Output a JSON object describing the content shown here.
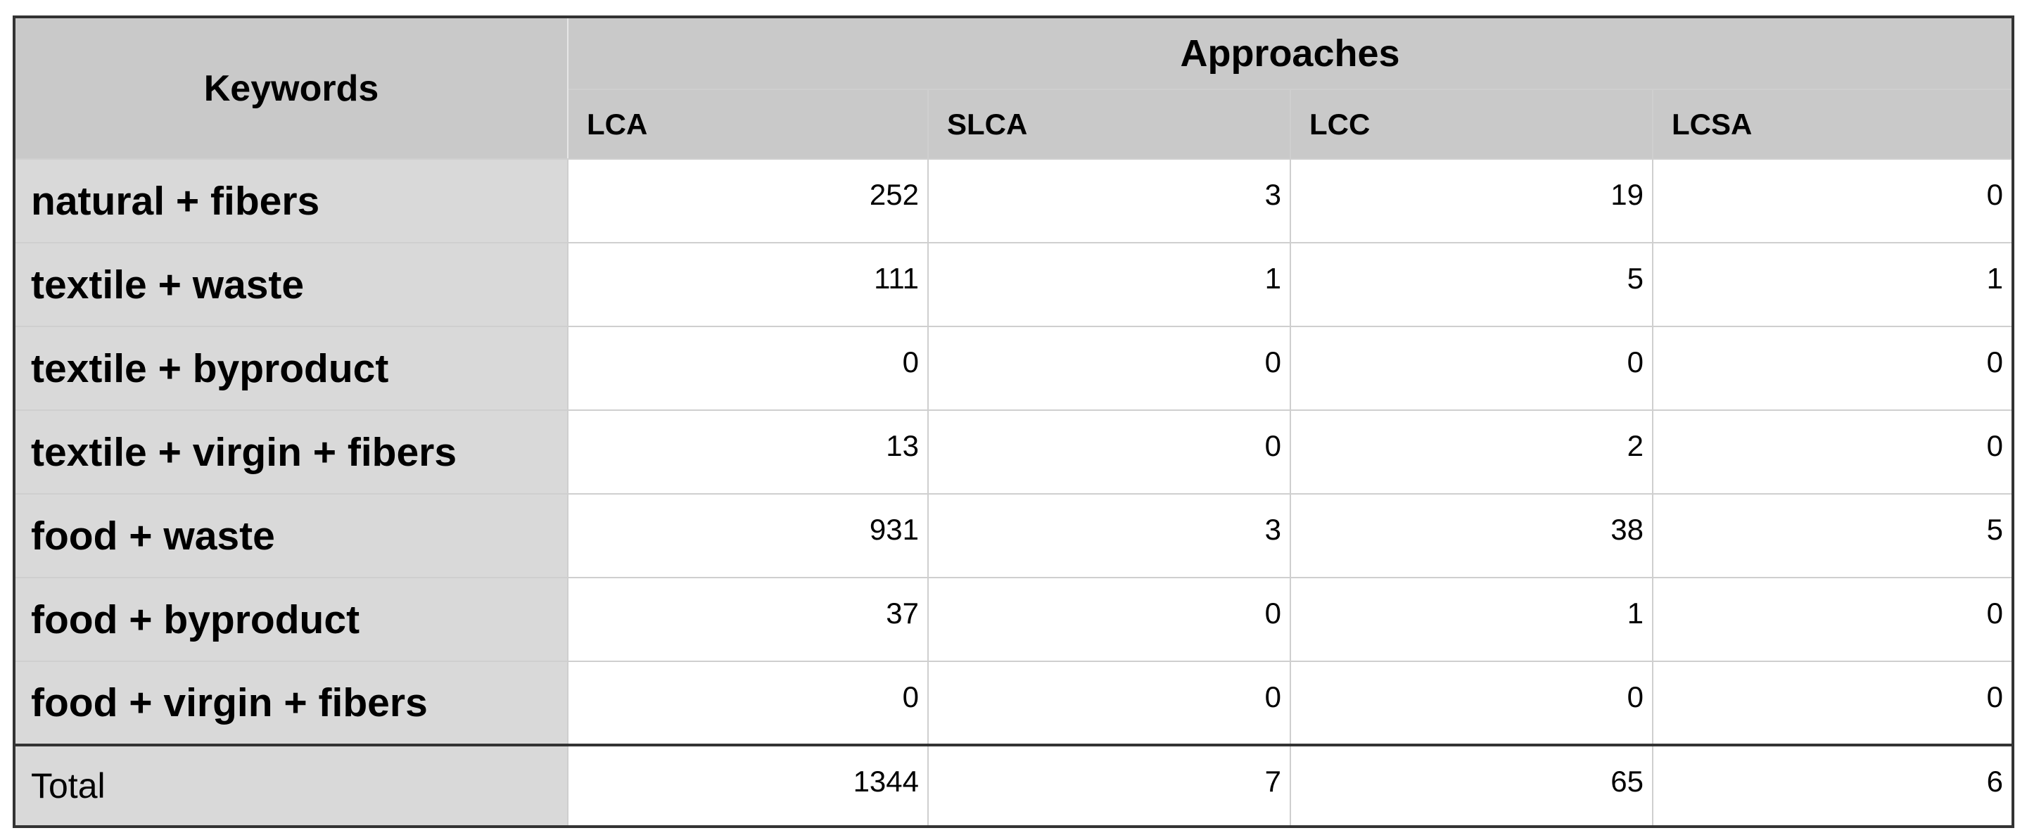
{
  "header": {
    "keywords": "Keywords",
    "approaches": "Approaches",
    "columns": [
      "LCA",
      "SLCA",
      "LCC",
      "LCSA"
    ]
  },
  "table": {
    "rows": [
      {
        "keyword": "natural + fibers",
        "values": [
          252,
          3,
          19,
          0
        ]
      },
      {
        "keyword": "textile + waste",
        "values": [
          111,
          1,
          5,
          1
        ]
      },
      {
        "keyword": "textile + byproduct",
        "values": [
          0,
          0,
          0,
          0
        ]
      },
      {
        "keyword": "textile + virgin + fibers",
        "values": [
          13,
          0,
          2,
          0
        ]
      },
      {
        "keyword": "food + waste",
        "values": [
          931,
          3,
          38,
          5
        ]
      },
      {
        "keyword": "food + byproduct",
        "values": [
          37,
          0,
          1,
          0
        ]
      },
      {
        "keyword": "food + virgin + fibers",
        "values": [
          0,
          0,
          0,
          0
        ]
      }
    ]
  },
  "total": {
    "label": "Total",
    "values": [
      1344,
      7,
      65,
      6
    ]
  }
}
